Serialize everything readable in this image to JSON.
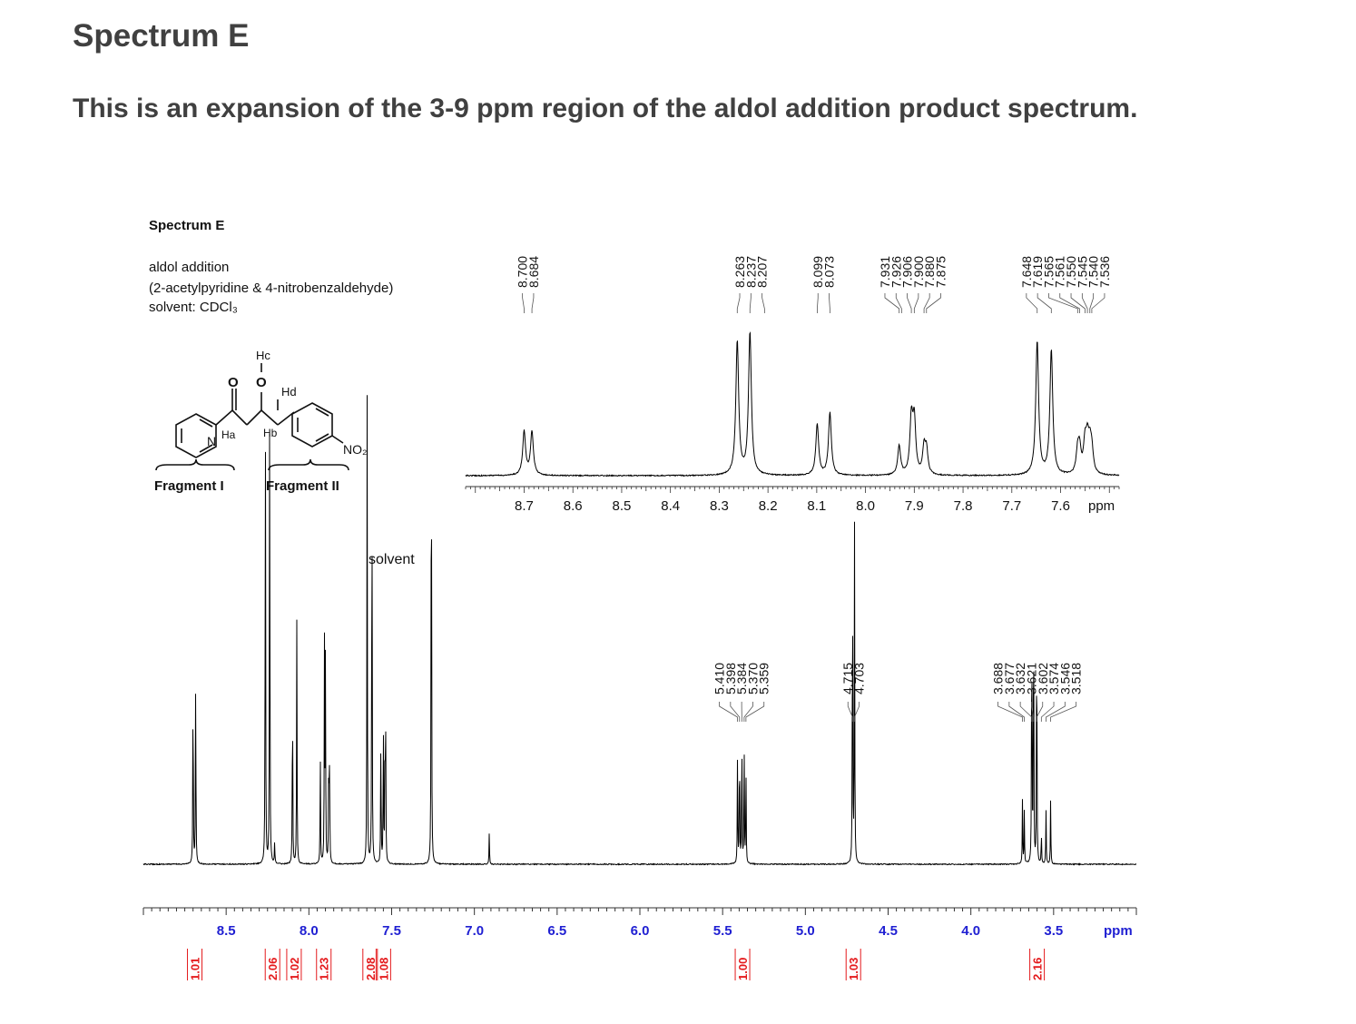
{
  "page": {
    "title": "Spectrum E",
    "subtitle": "This is an expansion of the 3-9 ppm region of the aldol addition product spectrum."
  },
  "figure": {
    "title": "Spectrum E",
    "lines": [
      "aldol addition",
      "(2-acetylpyridine & 4-nitrobenzaldehyde)",
      "solvent: CDCl₃"
    ],
    "structure_labels": {
      "hc": "Hc",
      "hd": "Hd",
      "ha": "Ha",
      "hb": "Hb",
      "o_carbonyl": "O",
      "o_hydroxyl": "O",
      "n": "N",
      "no2": "NO₂"
    },
    "fragments": [
      "Fragment I",
      "Fragment II"
    ],
    "solvent_label": "solvent",
    "colors": {
      "axis_label": "#1f1fd2",
      "integral": "#e41a1c",
      "line": "#000000"
    }
  },
  "chart_data": [
    {
      "type": "line",
      "name": "main spectrum",
      "xlabel": "ppm",
      "xlim": [
        9.0,
        3.0
      ],
      "x_ticks": [
        8.5,
        8.0,
        7.5,
        7.0,
        6.5,
        6.0,
        5.5,
        5.0,
        4.5,
        4.0,
        3.5
      ],
      "x_tick_labels": [
        "8.5",
        "8.0",
        "7.5",
        "7.0",
        "6.5",
        "6.0",
        "5.5",
        "5.0",
        "4.5",
        "4.0",
        "3.5"
      ],
      "peak_labels": [
        {
          "group": "5.4",
          "labels": [
            "5.410",
            "5.398",
            "5.384",
            "5.370",
            "5.359"
          ]
        },
        {
          "group": "4.7",
          "labels": [
            "4.715",
            "4.703"
          ]
        },
        {
          "group": "3.6",
          "labels": [
            "3.688",
            "3.677",
            "3.632",
            "3.621",
            "3.602",
            "3.574",
            "3.546",
            "3.518"
          ]
        }
      ],
      "integrals": [
        {
          "center": 8.69,
          "value": "1.01"
        },
        {
          "center": 8.22,
          "value": "2.06"
        },
        {
          "center": 8.09,
          "value": "1.02"
        },
        {
          "center": 7.91,
          "value": "1.23"
        },
        {
          "center": 7.63,
          "value": "2.08"
        },
        {
          "center": 7.55,
          "value": "1.08"
        },
        {
          "center": 5.38,
          "value": "1.00"
        },
        {
          "center": 4.71,
          "value": "1.03"
        },
        {
          "center": 3.6,
          "value": "2.16"
        }
      ],
      "peaks": [
        {
          "ppm": 8.7,
          "height": 0.36
        },
        {
          "ppm": 8.684,
          "height": 0.36
        },
        {
          "ppm": 8.263,
          "height": 0.88
        },
        {
          "ppm": 8.237,
          "height": 0.92
        },
        {
          "ppm": 8.207,
          "height": 0.04
        },
        {
          "ppm": 8.099,
          "height": 0.35
        },
        {
          "ppm": 8.073,
          "height": 0.45
        },
        {
          "ppm": 7.931,
          "height": 0.2
        },
        {
          "ppm": 7.906,
          "height": 0.4
        },
        {
          "ppm": 7.9,
          "height": 0.38
        },
        {
          "ppm": 7.88,
          "height": 0.22
        },
        {
          "ppm": 7.875,
          "height": 0.18
        },
        {
          "ppm": 7.648,
          "height": 0.86
        },
        {
          "ppm": 7.619,
          "height": 0.82
        },
        {
          "ppm": 7.565,
          "height": 0.25
        },
        {
          "ppm": 7.55,
          "height": 0.26
        },
        {
          "ppm": 7.54,
          "height": 0.24
        },
        {
          "ppm": 7.536,
          "height": 0.22
        },
        {
          "ppm": 7.26,
          "height": 1.0
        },
        {
          "ppm": 6.91,
          "height": 0.06
        },
        {
          "ppm": 5.41,
          "height": 0.2
        },
        {
          "ppm": 5.398,
          "height": 0.24
        },
        {
          "ppm": 5.384,
          "height": 0.26
        },
        {
          "ppm": 5.37,
          "height": 0.23
        },
        {
          "ppm": 5.359,
          "height": 0.18
        },
        {
          "ppm": 4.715,
          "height": 0.6
        },
        {
          "ppm": 4.703,
          "height": 0.62
        },
        {
          "ppm": 3.688,
          "height": 0.12
        },
        {
          "ppm": 3.677,
          "height": 0.1
        },
        {
          "ppm": 3.632,
          "height": 0.52
        },
        {
          "ppm": 3.621,
          "height": 0.55
        },
        {
          "ppm": 3.602,
          "height": 0.5
        },
        {
          "ppm": 3.574,
          "height": 0.06
        },
        {
          "ppm": 3.546,
          "height": 0.1
        },
        {
          "ppm": 3.518,
          "height": 0.12
        }
      ]
    },
    {
      "type": "line",
      "name": "aromatic expansion",
      "xlabel": "ppm",
      "xlim": [
        8.82,
        7.48
      ],
      "x_ticks": [
        8.7,
        8.6,
        8.5,
        8.4,
        8.3,
        8.2,
        8.1,
        8.0,
        7.9,
        7.8,
        7.7,
        7.6
      ],
      "x_tick_labels": [
        "8.7",
        "8.6",
        "8.5",
        "8.4",
        "8.3",
        "8.2",
        "8.1",
        "8.0",
        "7.9",
        "7.8",
        "7.7",
        "7.6"
      ],
      "peak_labels": [
        {
          "group": "8.69",
          "labels": [
            "8.700",
            "8.684"
          ]
        },
        {
          "group": "8.23",
          "labels": [
            "8.263",
            "8.237",
            "8.207"
          ]
        },
        {
          "group": "8.09",
          "labels": [
            "8.099",
            "8.073"
          ]
        },
        {
          "group": "7.90",
          "labels": [
            "7.931",
            "7.926",
            "7.906",
            "7.900",
            "7.880",
            "7.875"
          ]
        },
        {
          "group": "7.59",
          "labels": [
            "7.648",
            "7.619",
            "7.565",
            "7.561",
            "7.550",
            "7.545",
            "7.540",
            "7.536"
          ]
        }
      ],
      "peaks": [
        {
          "ppm": 8.7,
          "height": 0.3
        },
        {
          "ppm": 8.684,
          "height": 0.3
        },
        {
          "ppm": 8.263,
          "height": 0.92
        },
        {
          "ppm": 8.237,
          "height": 0.98
        },
        {
          "ppm": 8.099,
          "height": 0.35
        },
        {
          "ppm": 8.073,
          "height": 0.43
        },
        {
          "ppm": 7.931,
          "height": 0.2
        },
        {
          "ppm": 7.906,
          "height": 0.38
        },
        {
          "ppm": 7.9,
          "height": 0.36
        },
        {
          "ppm": 7.88,
          "height": 0.18
        },
        {
          "ppm": 7.875,
          "height": 0.16
        },
        {
          "ppm": 7.648,
          "height": 0.92
        },
        {
          "ppm": 7.619,
          "height": 0.86
        },
        {
          "ppm": 7.565,
          "height": 0.15
        },
        {
          "ppm": 7.561,
          "height": 0.16
        },
        {
          "ppm": 7.55,
          "height": 0.2
        },
        {
          "ppm": 7.545,
          "height": 0.21
        },
        {
          "ppm": 7.54,
          "height": 0.17
        },
        {
          "ppm": 7.536,
          "height": 0.15
        }
      ]
    }
  ]
}
